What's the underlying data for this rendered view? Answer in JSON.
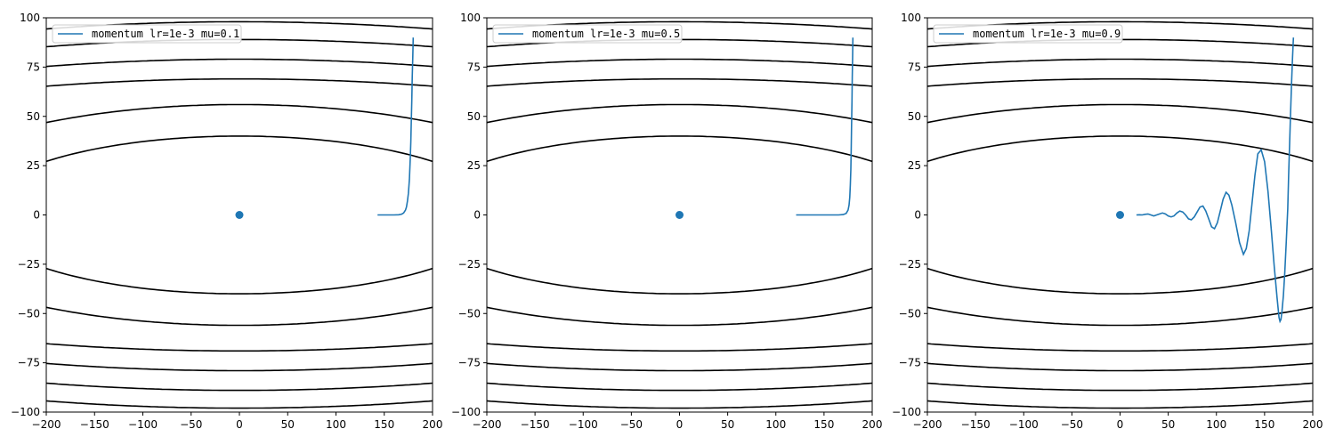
{
  "colors": {
    "trajectory": "#1f77b4",
    "contour": "#000000",
    "axes": "#000000",
    "legend_border": "#cccccc"
  },
  "chart_data": [
    {
      "type": "line",
      "legend": "momentum lr=1e-3 mu=0.1",
      "legend_placement": "top-left",
      "xlim": [
        -200,
        200
      ],
      "ylim": [
        -100,
        100
      ],
      "xticks": [
        -200,
        -150,
        -100,
        -50,
        0,
        50,
        100,
        150,
        200
      ],
      "yticks": [
        -100,
        -75,
        -50,
        -25,
        0,
        25,
        50,
        75,
        100
      ],
      "minimum": [
        0,
        0
      ],
      "contour_levels_y_at_x0": [
        40,
        56,
        69,
        79,
        89,
        98
      ],
      "series": [
        {
          "x": [
            180,
            179.5,
            179,
            178.5,
            178,
            177.5,
            177,
            176,
            175,
            174,
            173,
            172,
            170,
            168,
            165,
            160,
            155,
            150,
            145,
            143
          ],
          "y": [
            90,
            80,
            70,
            58,
            47,
            37,
            29,
            18,
            11,
            7,
            4,
            2.5,
            1,
            0.4,
            0.1,
            0,
            0,
            0,
            0,
            0
          ]
        }
      ]
    },
    {
      "type": "line",
      "legend": "momentum lr=1e-3 mu=0.5",
      "legend_placement": "top-left",
      "xlim": [
        -200,
        200
      ],
      "ylim": [
        -100,
        100
      ],
      "xticks": [
        -200,
        -150,
        -100,
        -50,
        0,
        50,
        100,
        150,
        200
      ],
      "yticks": [
        -100,
        -75,
        -50,
        -25,
        0,
        25,
        50,
        75,
        100
      ],
      "minimum": [
        0,
        0
      ],
      "contour_levels_y_at_x0": [
        40,
        56,
        69,
        79,
        89,
        98
      ],
      "series": [
        {
          "x": [
            180,
            179.7,
            179.3,
            179,
            178.6,
            178.2,
            177.8,
            177.3,
            176.7,
            176,
            175,
            173,
            170,
            165,
            150,
            135,
            121
          ],
          "y": [
            90,
            80,
            70,
            58,
            45,
            33,
            23,
            15,
            9,
            5,
            2.5,
            0.8,
            0.2,
            0,
            0,
            0,
            0
          ]
        }
      ]
    },
    {
      "type": "line",
      "legend": "momentum lr=1e-3 mu=0.9",
      "legend_placement": "top-left",
      "xlim": [
        -200,
        200
      ],
      "ylim": [
        -100,
        100
      ],
      "xticks": [
        -200,
        -150,
        -100,
        -50,
        0,
        50,
        100,
        150,
        200
      ],
      "yticks": [
        -100,
        -75,
        -50,
        -25,
        0,
        25,
        50,
        75,
        100
      ],
      "minimum": [
        0,
        0
      ],
      "contour_levels_y_at_x0": [
        40,
        56,
        69,
        79,
        89,
        98
      ],
      "series": [
        {
          "x": [
            180,
            179,
            178,
            177,
            176,
            175,
            174,
            172.5,
            171,
            169.5,
            168,
            167,
            166,
            165,
            163,
            160,
            157,
            153.5,
            150,
            146.5,
            143,
            140,
            137,
            134,
            131,
            128,
            124,
            120,
            116,
            113,
            110,
            107,
            104,
            101,
            98,
            95,
            92,
            89,
            86,
            83,
            80,
            77,
            74,
            71,
            68,
            65,
            62,
            59,
            56,
            53,
            50,
            47,
            44,
            41,
            38,
            35,
            32,
            29,
            26,
            23,
            20,
            17
          ],
          "y": [
            90,
            80,
            67,
            52,
            36,
            20,
            3,
            -14,
            -29,
            -41,
            -49,
            -53,
            -54,
            -52,
            -42,
            -26,
            -8,
            12,
            27,
            33,
            31,
            20,
            6,
            -8,
            -17,
            -20,
            -14,
            -4,
            5,
            10,
            11.5,
            8,
            2,
            -4,
            -7,
            -6,
            -2,
            2,
            4.5,
            4,
            1.5,
            -1,
            -2.5,
            -2,
            0,
            1.5,
            2,
            1,
            -0.5,
            -1,
            -0.5,
            0.5,
            1,
            0.5,
            0,
            -0.5,
            0,
            0.5,
            0.3,
            0,
            0.1,
            0
          ]
        }
      ]
    }
  ]
}
